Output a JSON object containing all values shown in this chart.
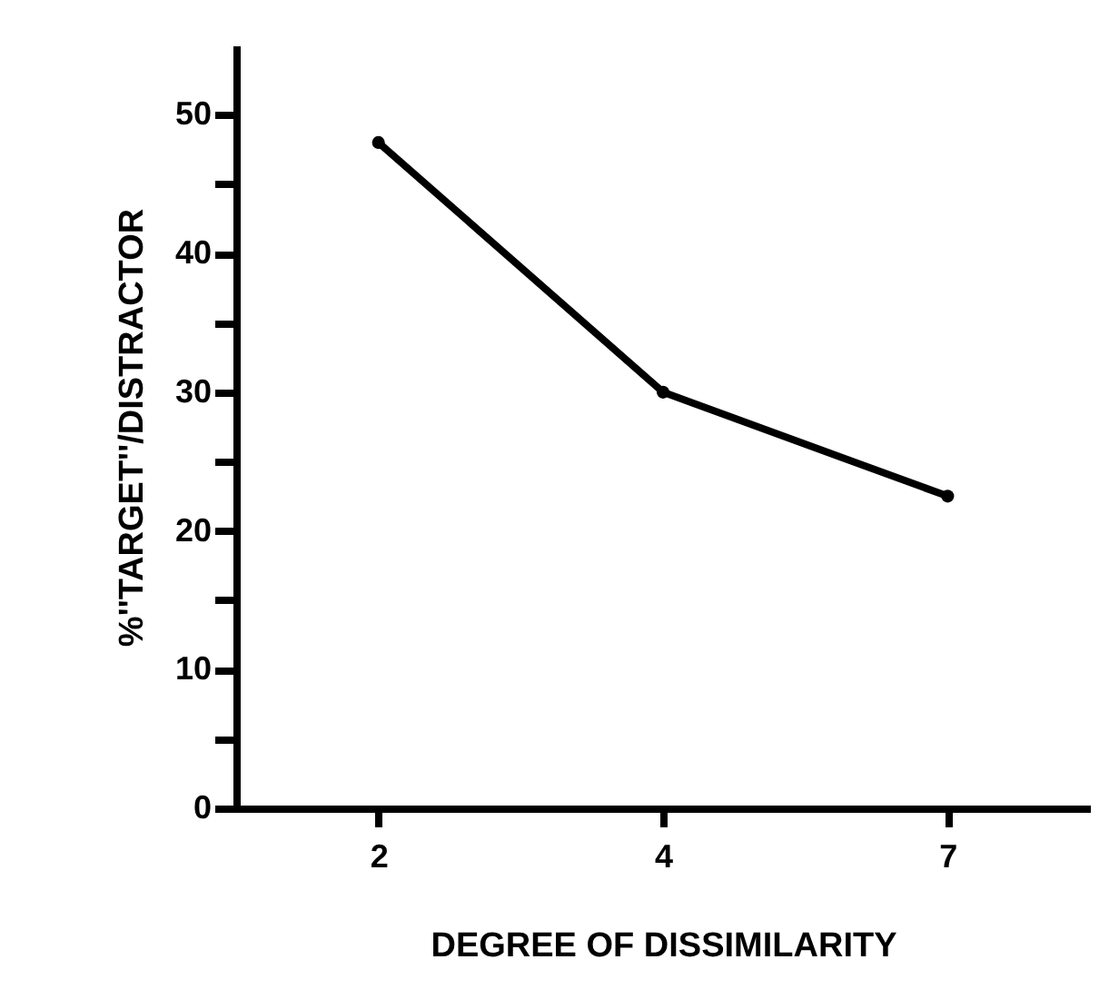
{
  "chart_data": {
    "type": "line",
    "xlabel": "DEGREE OF DISSIMILARITY",
    "ylabel": "%''TARGET''/DISTRACTOR",
    "categories": [
      "2",
      "4",
      "7"
    ],
    "series": [
      {
        "color": "#000000",
        "values": [
          48,
          30,
          22.5
        ]
      }
    ],
    "ylim": [
      0,
      55
    ],
    "yticks": [
      0,
      {
        "value": 5,
        "label": null
      },
      10,
      {
        "value": 15,
        "label": null
      },
      20,
      {
        "value": 25,
        "label": null
      },
      30,
      {
        "value": 35,
        "label": null
      },
      40,
      {
        "value": 45,
        "label": null
      },
      50
    ],
    "marker": "circle",
    "line_style": "solid",
    "grid": false
  }
}
